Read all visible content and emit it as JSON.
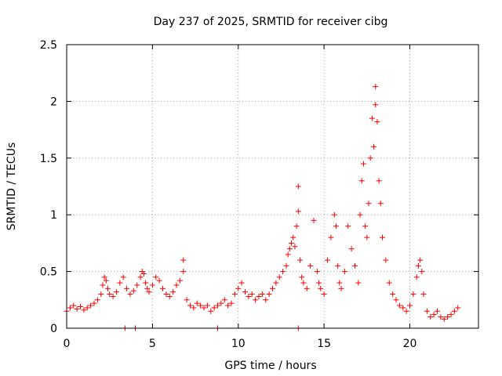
{
  "chart_data": {
    "type": "scatter",
    "title": "Day 237 of 2025, SRMTID for receiver cibg",
    "xlabel": "GPS time / hours",
    "ylabel": "SRMTID / TECUs",
    "xlim": [
      0,
      24
    ],
    "ylim": [
      0,
      2.5
    ],
    "xticks": [
      0,
      5,
      10,
      15,
      20
    ],
    "xtick_labels": [
      "0",
      "5",
      "10",
      "15",
      "20"
    ],
    "yticks": [
      0,
      0.5,
      1,
      1.5,
      2,
      2.5
    ],
    "ytick_labels": [
      "0",
      "0.5",
      "1",
      "1.5",
      "2",
      "2.5"
    ],
    "grid": true,
    "marker": "+",
    "color": "#ff0000",
    "series": [
      {
        "name": "SRMTID",
        "x": [
          0.0,
          0.2,
          0.4,
          0.6,
          0.8,
          1.0,
          1.2,
          1.4,
          1.6,
          1.8,
          2.0,
          2.1,
          2.2,
          2.3,
          2.4,
          2.5,
          2.7,
          2.9,
          3.1,
          3.3,
          3.5,
          3.7,
          3.9,
          4.1,
          4.3,
          4.4,
          4.5,
          4.6,
          4.7,
          4.8,
          5.0,
          5.2,
          5.4,
          5.6,
          5.8,
          6.0,
          6.2,
          6.4,
          6.6,
          6.8,
          6.8,
          7.0,
          7.2,
          7.4,
          7.6,
          7.8,
          8.0,
          8.2,
          8.4,
          8.6,
          8.8,
          9.0,
          9.2,
          9.4,
          9.6,
          9.8,
          10.0,
          10.2,
          10.4,
          10.6,
          10.8,
          11.0,
          11.2,
          11.4,
          11.6,
          11.8,
          12.0,
          12.2,
          12.4,
          12.6,
          12.8,
          12.9,
          13.0,
          13.1,
          13.2,
          13.3,
          13.4,
          13.5,
          13.5,
          13.6,
          13.7,
          13.8,
          14.0,
          14.2,
          14.4,
          14.6,
          14.7,
          14.8,
          15.0,
          15.2,
          15.4,
          15.6,
          15.7,
          15.8,
          15.9,
          16.0,
          16.2,
          16.4,
          16.6,
          16.8,
          17.0,
          17.1,
          17.2,
          17.3,
          17.4,
          17.5,
          17.6,
          17.7,
          17.8,
          17.9,
          18.0,
          18.0,
          18.1,
          18.2,
          18.3,
          18.4,
          18.6,
          18.8,
          19.0,
          19.2,
          19.4,
          19.6,
          19.8,
          20.0,
          20.2,
          20.4,
          20.5,
          20.6,
          20.7,
          20.8,
          21.0,
          21.2,
          21.4,
          21.6,
          21.8,
          22.0,
          22.2,
          22.4,
          22.6,
          22.8,
          3.4,
          4.0,
          8.8,
          13.5
        ],
        "y": [
          0.15,
          0.18,
          0.2,
          0.17,
          0.19,
          0.16,
          0.18,
          0.2,
          0.22,
          0.25,
          0.3,
          0.38,
          0.45,
          0.42,
          0.35,
          0.3,
          0.28,
          0.32,
          0.4,
          0.45,
          0.35,
          0.3,
          0.33,
          0.38,
          0.45,
          0.5,
          0.48,
          0.4,
          0.35,
          0.32,
          0.38,
          0.45,
          0.42,
          0.35,
          0.3,
          0.28,
          0.32,
          0.38,
          0.42,
          0.6,
          0.5,
          0.25,
          0.2,
          0.18,
          0.22,
          0.2,
          0.18,
          0.2,
          0.15,
          0.18,
          0.2,
          0.22,
          0.25,
          0.2,
          0.22,
          0.3,
          0.35,
          0.4,
          0.32,
          0.28,
          0.3,
          0.25,
          0.28,
          0.3,
          0.25,
          0.3,
          0.35,
          0.4,
          0.45,
          0.5,
          0.55,
          0.65,
          0.7,
          0.75,
          0.8,
          0.72,
          0.9,
          1.03,
          1.25,
          0.6,
          0.45,
          0.4,
          0.35,
          0.55,
          0.95,
          0.5,
          0.4,
          0.35,
          0.3,
          0.6,
          0.8,
          1.0,
          0.9,
          0.55,
          0.4,
          0.35,
          0.5,
          0.9,
          0.7,
          0.55,
          0.4,
          1.0,
          1.3,
          1.45,
          0.9,
          0.8,
          1.1,
          1.5,
          1.85,
          1.6,
          2.13,
          1.97,
          1.82,
          1.3,
          1.1,
          0.8,
          0.6,
          0.4,
          0.3,
          0.25,
          0.2,
          0.18,
          0.15,
          0.2,
          0.3,
          0.45,
          0.55,
          0.6,
          0.5,
          0.3,
          0.15,
          0.1,
          0.12,
          0.15,
          0.1,
          0.08,
          0.1,
          0.12,
          0.15,
          0.18,
          0.0,
          0.0,
          0.0,
          0.0
        ]
      }
    ]
  }
}
